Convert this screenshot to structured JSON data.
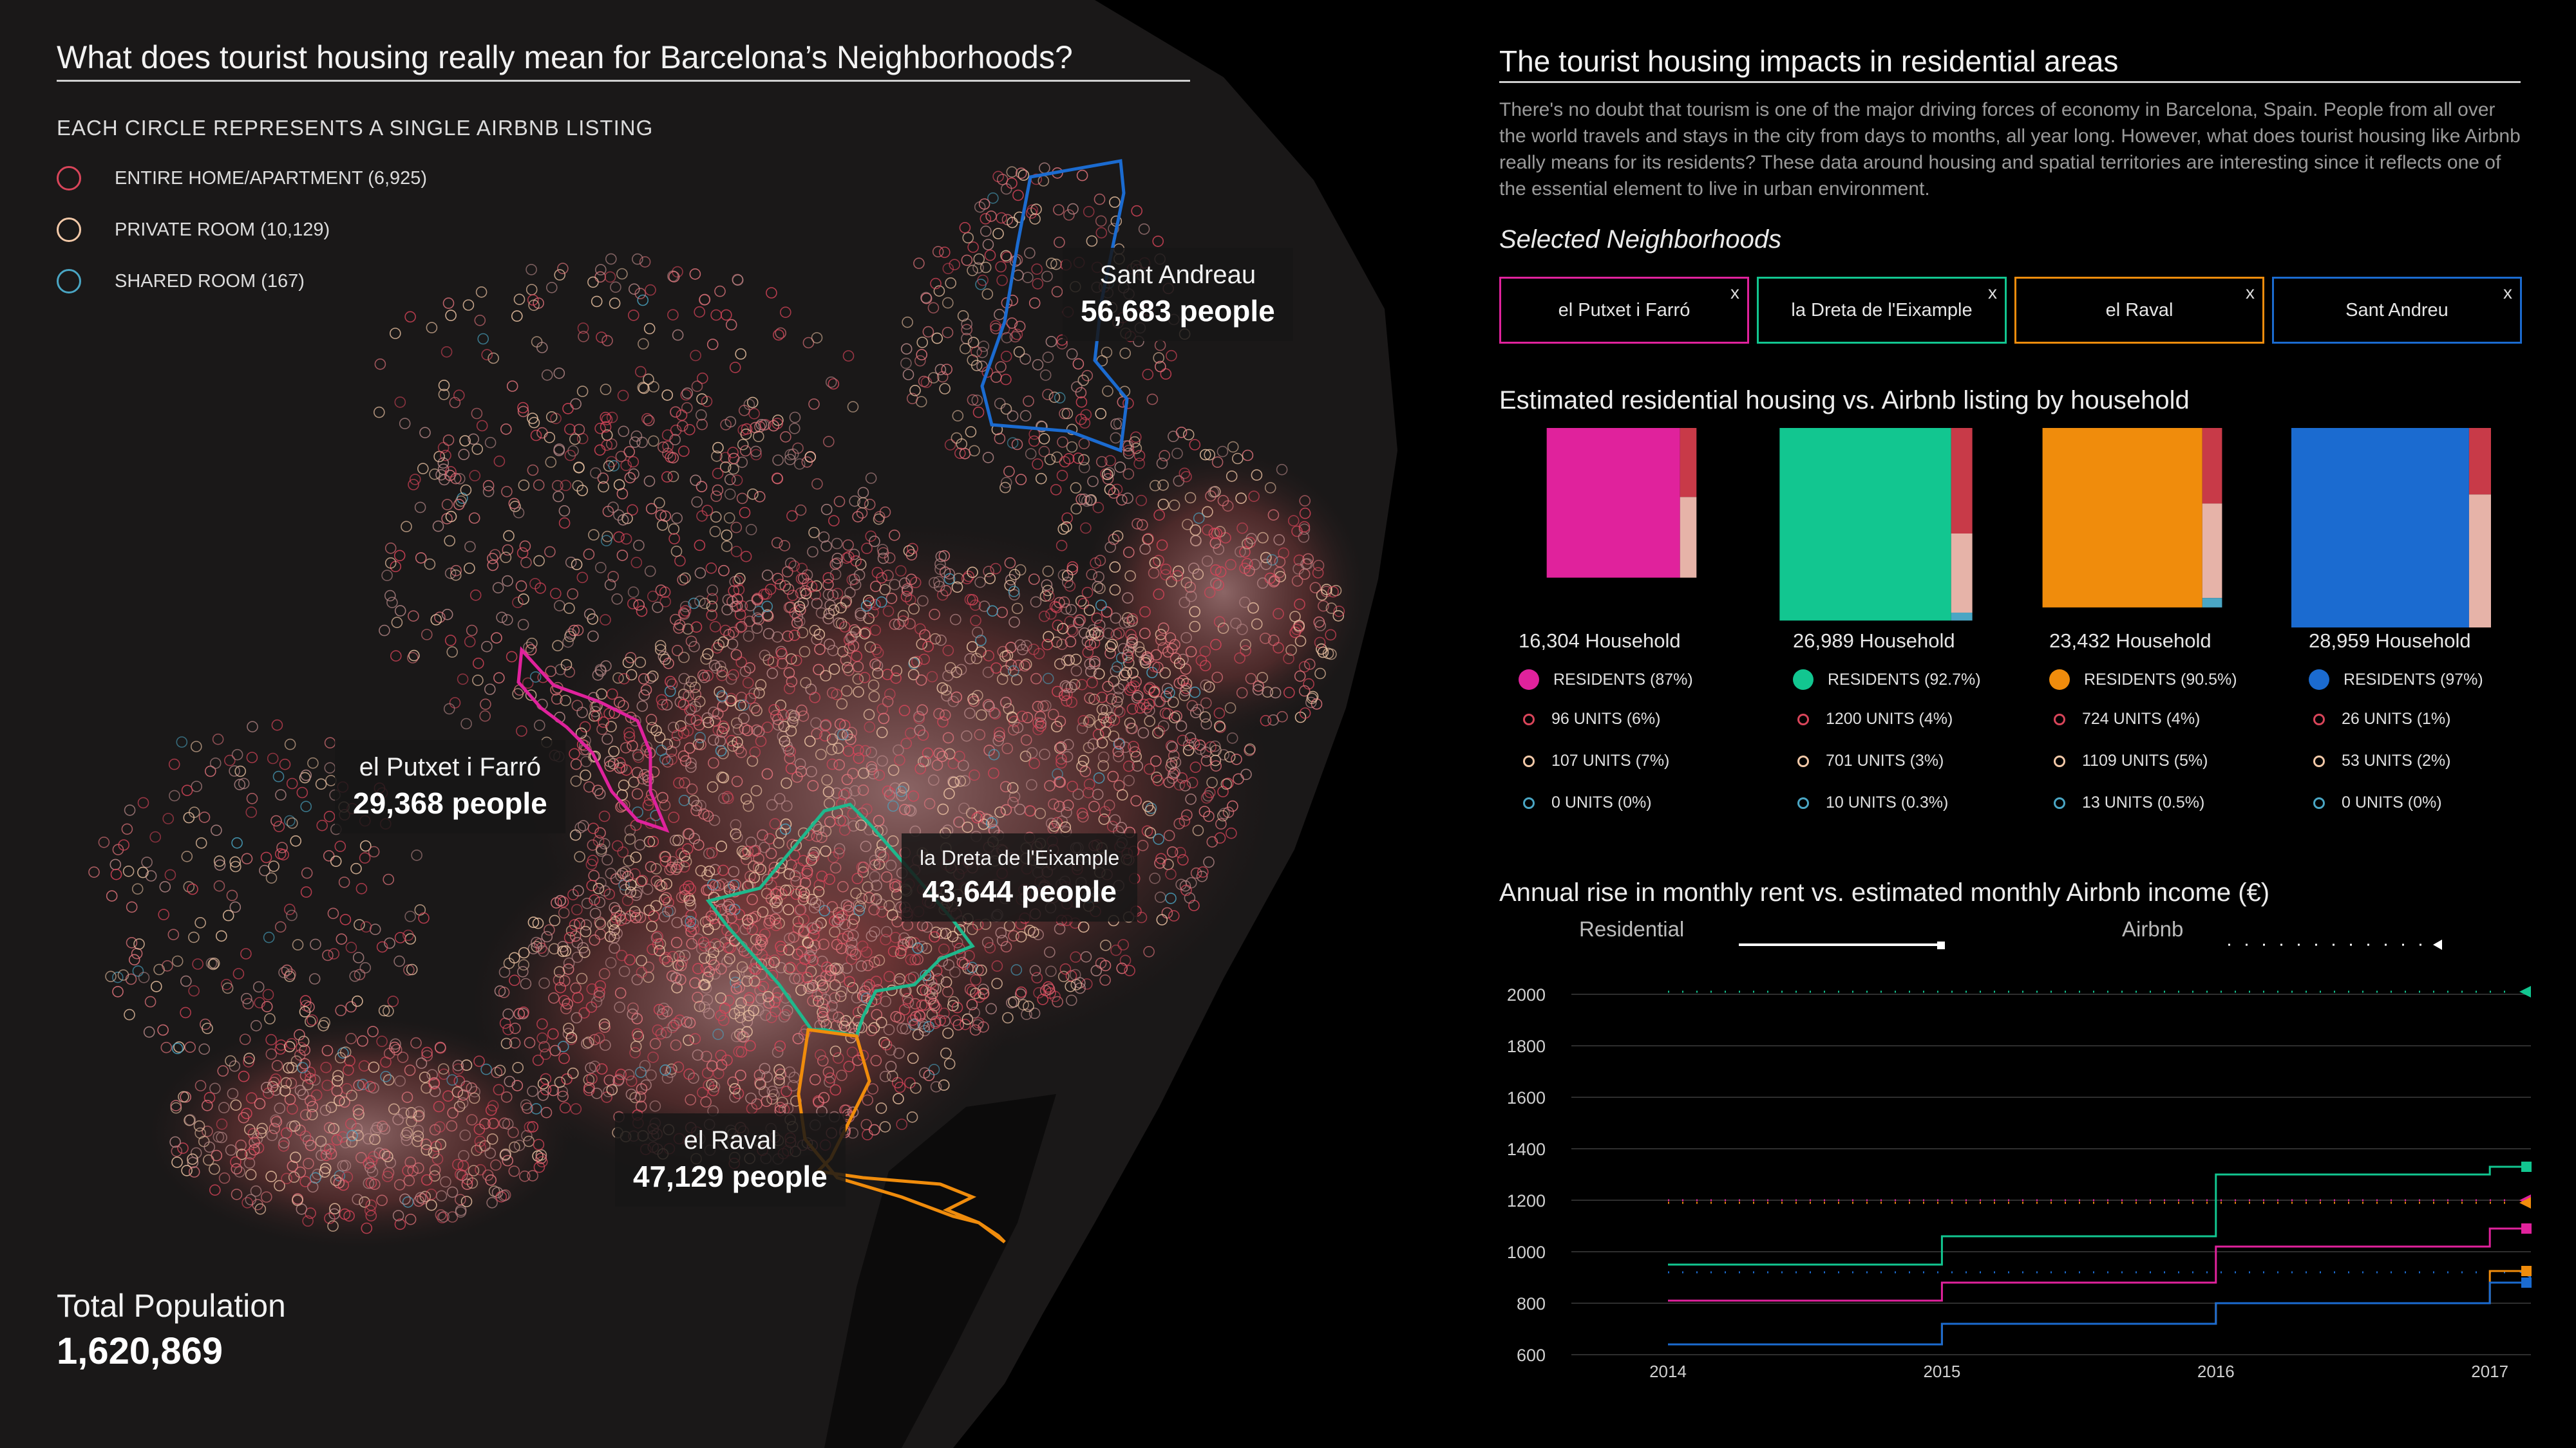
{
  "header": {
    "title": "What does tourist housing really mean for Barcelona’s Neighborhoods?",
    "subtitle": "EACH CIRCLE REPRESENTS A SINGLE AIRBNB LISTING"
  },
  "legend": [
    {
      "label": "ENTIRE HOME/APARTMENT (6,925)",
      "color": "#d9455a"
    },
    {
      "label": "PRIVATE ROOM (10,129)",
      "color": "#f3c9a8"
    },
    {
      "label": "SHARED ROOM (167)",
      "color": "#4aa6c4"
    }
  ],
  "callouts": {
    "sant_andreu": {
      "name": "Sant Andreau",
      "people": "56,683 people"
    },
    "putxet": {
      "name": "el Putxet i Farró",
      "people": "29,368 people"
    },
    "dreta": {
      "name": "la Dreta de l'Eixample",
      "people": "43,644 people"
    },
    "raval": {
      "name": "el Raval",
      "people": "47,129 people"
    }
  },
  "total": {
    "label": "Total Population",
    "value": "1,620,869"
  },
  "panel": {
    "title": "The tourist housing impacts in residential areas",
    "intro": "There's no doubt that tourism is one of the major driving forces of economy in Barcelona, Spain. People from all over the world travels and stays in the city from days to months, all year long. However, what does tourist housing like Airbnb really means for its residents? These data around housing and spatial territories are interesting since it reflects one of the essential element to live in urban environment.",
    "selected_title": "Selected Neighborhoods",
    "housing_title": "Estimated residential housing vs. Airbnb listing by household",
    "rent_title": "Annual rise in monthly rent vs. estimated monthly Airbnb income (€)"
  },
  "neighborhoods": [
    {
      "name": "el Putxet i Farró",
      "close": "x",
      "color": "#e0229c",
      "household": "16,304  Household",
      "residents": "RESIDENTS (87%)",
      "entire": "96 UNITS (6%)",
      "private": "107 UNITS (7%)",
      "shared": "0 UNITS (0%)"
    },
    {
      "name": "la Dreta de l'Eixample",
      "close": "x",
      "color": "#12c690",
      "household": "26,989  Household",
      "residents": "RESIDENTS (92.7%)",
      "entire": "1200 UNITS (4%)",
      "private": "701 UNITS (3%)",
      "shared": "10 UNITS (0.3%)"
    },
    {
      "name": "el Raval",
      "close": "x",
      "color": "#f08c0c",
      "household": "23,432  Household",
      "residents": "RESIDENTS (90.5%)",
      "entire": "724 UNITS (4%)",
      "private": "1109 UNITS (5%)",
      "shared": "13 UNITS (0.5%)"
    },
    {
      "name": "Sant Andreu",
      "close": "x",
      "color": "#1b6bd0",
      "household": "28,959  Household",
      "residents": "RESIDENTS (97%)",
      "entire": "26 UNITS (1%)",
      "private": "53 UNITS (2%)",
      "shared": "0 UNITS (0%)"
    }
  ],
  "chart_data": [
    {
      "type": "bar",
      "categories": [
        "el Putxet i Farró",
        "la Dreta de l'Eixample",
        "el Raval",
        "Sant Andreu"
      ],
      "households": [
        16304,
        26989,
        23432,
        28959
      ],
      "series": [
        {
          "name": "RESIDENTS",
          "values": [
            87,
            92.7,
            90.5,
            97
          ]
        },
        {
          "name": "ENTIRE HOME/APARTMENT",
          "values": [
            6,
            4,
            4,
            1
          ]
        },
        {
          "name": "PRIVATE ROOM",
          "values": [
            7,
            3,
            5,
            2
          ]
        },
        {
          "name": "SHARED ROOM",
          "values": [
            0,
            0.3,
            0.5,
            0
          ]
        }
      ]
    },
    {
      "type": "line",
      "legend": {
        "residential": "Residential",
        "airbnb": "Airbnb"
      },
      "x_ticks": [
        "2014",
        "2015",
        "2016",
        "2017"
      ],
      "y_ticks": [
        "2000",
        "1800",
        "1600",
        "1400",
        "1200",
        "1000",
        "800",
        "600"
      ],
      "ylim": [
        600,
        2000
      ],
      "xlim": [
        2014,
        2017.15
      ],
      "residential": [
        {
          "color": "#12c690",
          "values": [
            950,
            1060,
            1300,
            1330
          ]
        },
        {
          "color": "#e0229c",
          "values": [
            810,
            880,
            1020,
            1090
          ]
        },
        {
          "color": "#f08c0c",
          "values": [
            640,
            720,
            800,
            925
          ]
        },
        {
          "color": "#1b6bd0",
          "values": [
            640,
            720,
            800,
            880
          ]
        }
      ],
      "airbnb": [
        {
          "color": "#12c690",
          "value": 2010
        },
        {
          "color": "#e0229c",
          "value": 1200
        },
        {
          "color": "#f08c0c",
          "value": 1190
        },
        {
          "color": "#1b6bd0",
          "value": 920
        }
      ]
    }
  ]
}
